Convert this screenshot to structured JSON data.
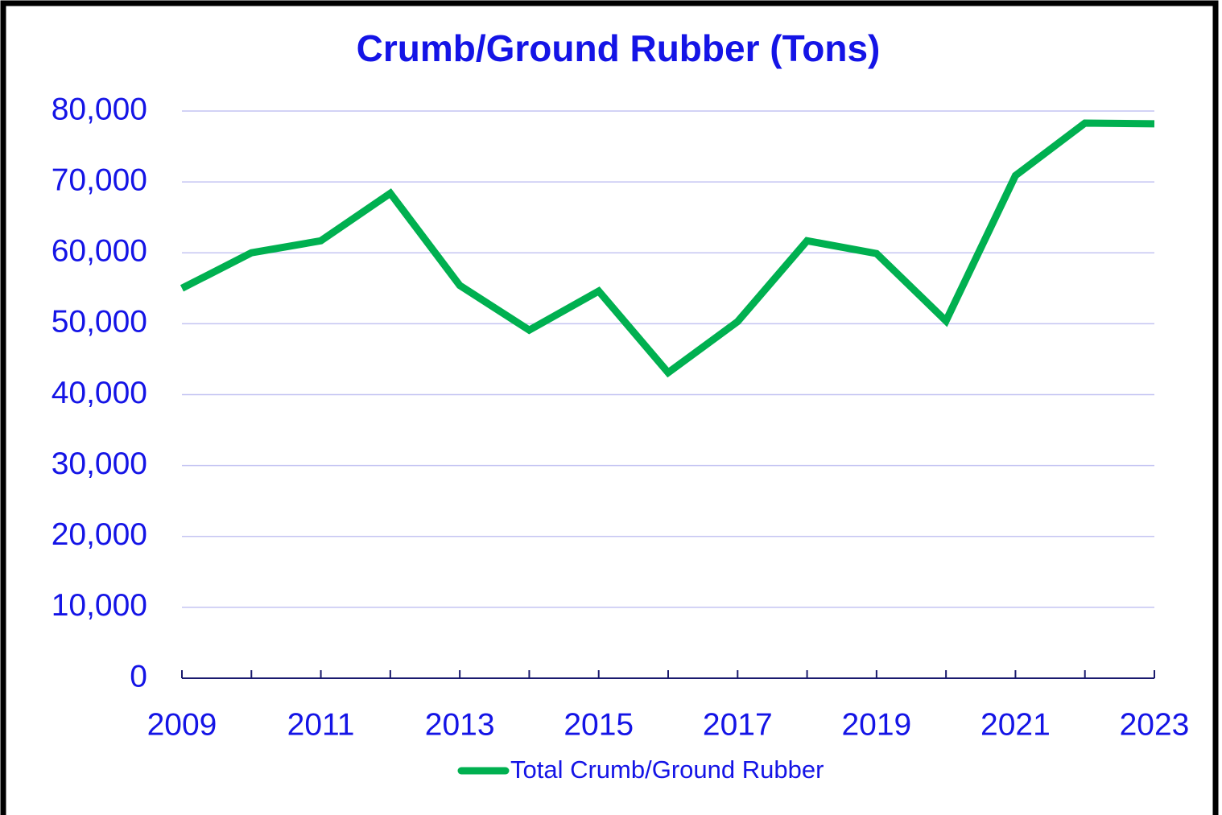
{
  "chart_data": {
    "type": "line",
    "title": "Crumb/Ground Rubber (Tons)",
    "x": [
      2009,
      2010,
      2011,
      2012,
      2013,
      2014,
      2015,
      2016,
      2017,
      2018,
      2019,
      2020,
      2021,
      2022,
      2023
    ],
    "series": [
      {
        "name": "Total Crumb/Ground Rubber",
        "color": "#00b050",
        "values": [
          55000,
          60000,
          61700,
          68400,
          55400,
          49100,
          54600,
          43100,
          50300,
          61700,
          59900,
          50400,
          70900,
          78300,
          78200
        ]
      }
    ],
    "xlim": [
      2009,
      2023
    ],
    "xticks": [
      2009,
      2011,
      2013,
      2015,
      2017,
      2019,
      2021,
      2023
    ],
    "ylim": [
      0,
      80000
    ],
    "yticks": [
      0,
      {
        "value": 10000,
        "label": "10,000"
      },
      {
        "value": 20000,
        "label": "20,000"
      },
      {
        "value": 30000,
        "label": "30,000"
      },
      {
        "value": 40000,
        "label": "40,000"
      },
      {
        "value": 50000,
        "label": "50,000"
      },
      {
        "value": 60000,
        "label": "60,000"
      },
      {
        "value": 70000,
        "label": "70,000"
      },
      {
        "value": 80000,
        "label": "80,000"
      }
    ],
    "grid": true,
    "legend": "bottom"
  }
}
